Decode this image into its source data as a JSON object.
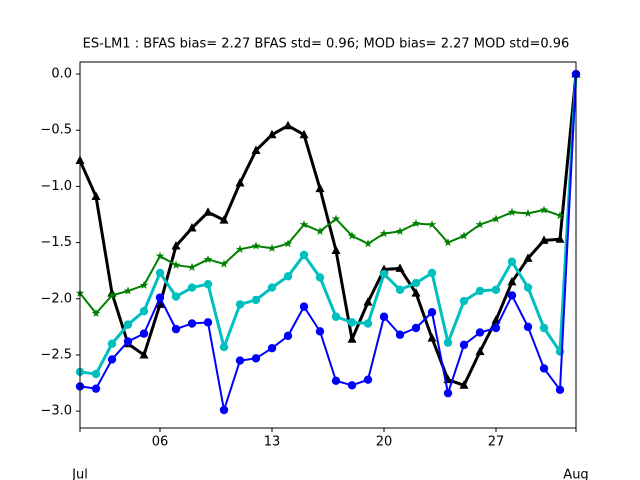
{
  "chart_data": {
    "type": "line",
    "title": "ES-LM1   : BFAS bias= 2.27 BFAS std= 0.96; MOD bias= 2.27 MOD std=0.96",
    "x": [
      "07-01",
      "07-02",
      "07-03",
      "07-04",
      "07-05",
      "07-06",
      "07-07",
      "07-08",
      "07-09",
      "07-10",
      "07-11",
      "07-12",
      "07-13",
      "07-14",
      "07-15",
      "07-16",
      "07-17",
      "07-18",
      "07-19",
      "07-20",
      "07-21",
      "07-22",
      "07-23",
      "07-24",
      "07-25",
      "07-26",
      "07-27",
      "07-28",
      "07-29",
      "07-30",
      "07-31",
      "08-01"
    ],
    "series": [
      {
        "color": "#000000",
        "marker": "triangle",
        "width": 3,
        "values": [
          -0.77,
          -1.09,
          -1.95,
          -2.4,
          -2.5,
          -2.05,
          -1.53,
          -1.37,
          -1.23,
          -1.3,
          -0.97,
          -0.68,
          -0.54,
          -0.46,
          -0.54,
          -1.02,
          -1.57,
          -2.36,
          -2.03,
          -1.74,
          -1.73,
          -1.95,
          -2.35,
          -2.72,
          -2.77,
          -2.47,
          -2.19,
          -1.85,
          -1.64,
          -1.48,
          -1.47,
          0.0
        ]
      },
      {
        "color": "#008000",
        "marker": "star",
        "width": 2,
        "values": [
          -1.95,
          -2.13,
          -1.97,
          -1.93,
          -1.88,
          -1.62,
          -1.7,
          -1.72,
          -1.65,
          -1.69,
          -1.56,
          -1.53,
          -1.55,
          -1.51,
          -1.34,
          -1.4,
          -1.29,
          -1.44,
          -1.51,
          -1.42,
          -1.4,
          -1.33,
          -1.34,
          -1.5,
          -1.44,
          -1.34,
          -1.29,
          -1.23,
          -1.24,
          -1.21,
          -1.26,
          null
        ]
      },
      {
        "color": "#00bfbf",
        "marker": "circle",
        "width": 3,
        "values": [
          -2.65,
          -2.67,
          -2.4,
          -2.23,
          -2.11,
          -1.77,
          -1.98,
          -1.9,
          -1.87,
          -2.43,
          -2.05,
          -2.01,
          -1.9,
          -1.8,
          -1.61,
          -1.81,
          -2.16,
          -2.21,
          -2.22,
          -1.78,
          -1.92,
          -1.86,
          -1.77,
          -2.39,
          -2.02,
          -1.93,
          -1.92,
          -1.67,
          -1.9,
          -2.26,
          -2.47,
          0.0
        ]
      },
      {
        "color": "#0000ff",
        "marker": "circle",
        "width": 2,
        "values": [
          -2.78,
          -2.8,
          -2.54,
          -2.38,
          -2.31,
          -1.99,
          -2.27,
          -2.22,
          -2.21,
          -2.99,
          -2.55,
          -2.53,
          -2.44,
          -2.33,
          -2.07,
          -2.29,
          -2.73,
          -2.77,
          -2.72,
          -2.16,
          -2.32,
          -2.26,
          -2.12,
          -2.84,
          -2.41,
          -2.3,
          -2.26,
          -1.97,
          -2.25,
          -2.62,
          -2.81,
          0.0
        ]
      }
    ],
    "xlim": [
      "07-01",
      "08-01"
    ],
    "xticks": [
      {
        "value": "07-06",
        "label": "06"
      },
      {
        "value": "07-13",
        "label": "13"
      },
      {
        "value": "07-20",
        "label": "20"
      },
      {
        "value": "07-27",
        "label": "27"
      }
    ],
    "xmajorticks": [
      {
        "value": "07-01",
        "label": "Jul"
      },
      {
        "value": "08-01",
        "label": "Aug"
      }
    ],
    "ylim": [
      -3.15,
      0.107
    ],
    "yticks": [
      {
        "value": 0,
        "label": "0.0"
      },
      {
        "value": -0.5,
        "label": "−0.5"
      },
      {
        "value": -1,
        "label": "−1.0"
      },
      {
        "value": -1.5,
        "label": "−1.5"
      },
      {
        "value": -2,
        "label": "−2.0"
      },
      {
        "value": -2.5,
        "label": "−2.5"
      },
      {
        "value": -3,
        "label": "−3.0"
      }
    ]
  }
}
